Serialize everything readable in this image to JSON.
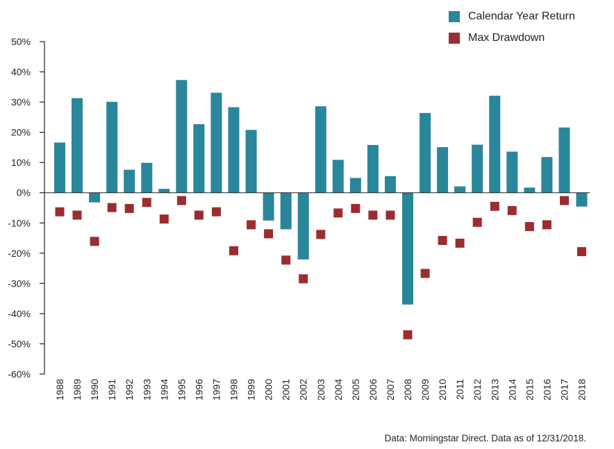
{
  "legend": {
    "return_label": "Calendar Year Return",
    "drawdown_label": "Max Drawdown"
  },
  "note": "Data: Morningstar Direct. Data as of 12/31/2018.",
  "colors": {
    "return": "#2a869a",
    "drawdown": "#9b2d30",
    "axis": "#231f20"
  },
  "chart_data": {
    "type": "bar",
    "title": "",
    "xlabel": "",
    "ylabel": "",
    "ylim": [
      -60,
      50
    ],
    "yticks": [
      50,
      40,
      30,
      20,
      10,
      0,
      -10,
      -20,
      -30,
      -40,
      -50,
      -60
    ],
    "ytick_labels": [
      "50%",
      "40%",
      "30%",
      "20%",
      "10%",
      "0%",
      "-10%",
      "-20%",
      "-30%",
      "-40%",
      "-50%",
      "-60%"
    ],
    "grid": false,
    "legend_position": "top-right",
    "categories": [
      "1988",
      "1989",
      "1990",
      "1991",
      "1992",
      "1993",
      "1994",
      "1995",
      "1996",
      "1997",
      "1998",
      "1999",
      "2000",
      "2001",
      "2002",
      "2003",
      "2004",
      "2005",
      "2006",
      "2007",
      "2008",
      "2009",
      "2010",
      "2011",
      "2012",
      "2013",
      "2014",
      "2015",
      "2016",
      "2017",
      "2018"
    ],
    "series": [
      {
        "name": "Calendar Year Return",
        "mark": "bar",
        "values": [
          16.6,
          31.3,
          -3.2,
          30.1,
          7.6,
          9.9,
          1.3,
          37.3,
          22.7,
          33.1,
          28.3,
          20.8,
          -9.2,
          -12.1,
          -22.1,
          28.6,
          10.9,
          4.9,
          15.8,
          5.5,
          -37.0,
          26.4,
          15.1,
          2.1,
          15.9,
          32.1,
          13.6,
          1.7,
          11.8,
          21.6,
          -4.6
        ]
      },
      {
        "name": "Max Drawdown",
        "mark": "square",
        "values": [
          -6.3,
          -7.4,
          -16.1,
          -4.9,
          -5.2,
          -3.2,
          -8.7,
          -2.6,
          -7.4,
          -6.3,
          -19.2,
          -10.6,
          -13.6,
          -22.3,
          -28.5,
          -13.8,
          -6.7,
          -5.2,
          -7.4,
          -7.4,
          -47.0,
          -26.7,
          -15.8,
          -16.7,
          -9.8,
          -4.5,
          -5.9,
          -11.2,
          -10.6,
          -2.6,
          -19.5
        ]
      }
    ]
  }
}
